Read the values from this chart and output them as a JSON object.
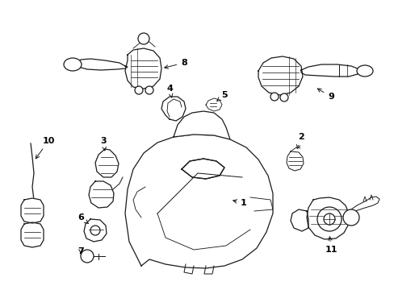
{
  "background_color": "#ffffff",
  "line_color": "#1a1a1a",
  "label_color": "#000000",
  "fig_width": 4.89,
  "fig_height": 3.6,
  "dpi": 100,
  "lw": 0.9
}
